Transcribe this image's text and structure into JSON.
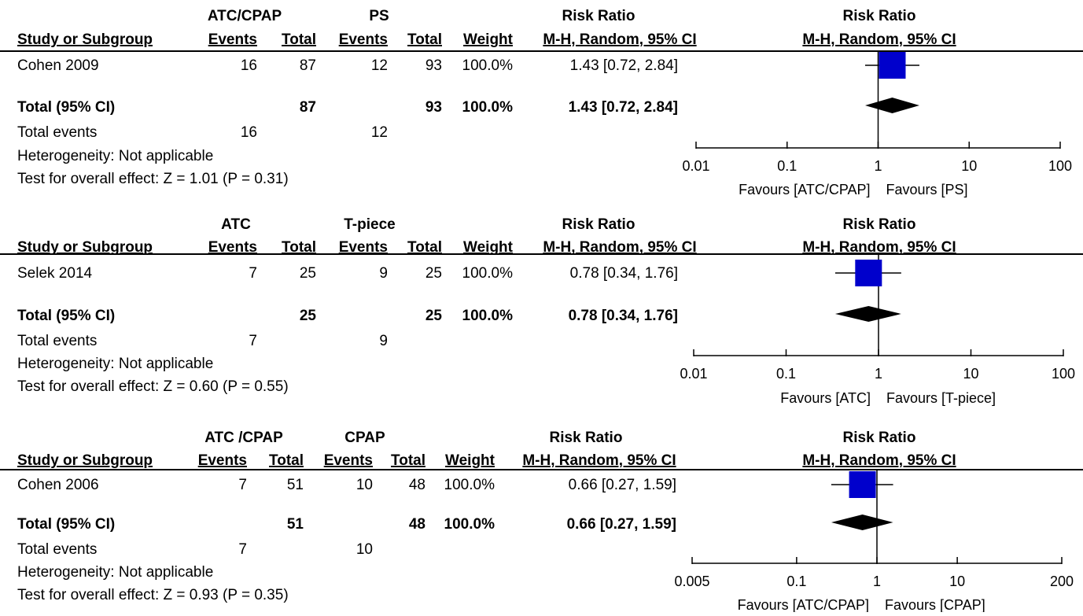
{
  "chart_data": [
    {
      "type": "forest",
      "groups": [
        "ATC/CPAP",
        "PS"
      ],
      "columns": [
        "Study or Subgroup",
        "Events",
        "Total",
        "Events",
        "Total",
        "Weight"
      ],
      "effect_header": "Risk Ratio",
      "effect_subheader": "M-H, Random, 95% CI",
      "studies": [
        {
          "name": "Cohen 2009",
          "e1": "16",
          "t1": "87",
          "e2": "12",
          "t2": "93",
          "weight": "100.0%",
          "ci_text": "1.43 [0.72, 2.84]",
          "rr": 1.43,
          "lo": 0.72,
          "hi": 2.84
        }
      ],
      "total": {
        "label": "Total (95% CI)",
        "t1": "87",
        "t2": "93",
        "weight": "100.0%",
        "ci_text": "1.43 [0.72, 2.84]",
        "rr": 1.43,
        "lo": 0.72,
        "hi": 2.84
      },
      "total_events": {
        "label": "Total events",
        "e1": "16",
        "e2": "12"
      },
      "heterogeneity": "Heterogeneity: Not applicable",
      "overall_effect": "Test for overall effect: Z = 1.01 (P = 0.31)",
      "x_scale": "log",
      "xlim": [
        0.01,
        100
      ],
      "ticks": [
        {
          "v": 0.01,
          "label": "0.01"
        },
        {
          "v": 0.1,
          "label": "0.1"
        },
        {
          "v": 1,
          "label": "1"
        },
        {
          "v": 10,
          "label": "10"
        },
        {
          "v": 100,
          "label": "100"
        }
      ],
      "favours_left": "Favours [ATC/CPAP]",
      "favours_right": "Favours [PS]"
    },
    {
      "type": "forest",
      "groups": [
        "ATC",
        "T-piece"
      ],
      "columns": [
        "Study or Subgroup",
        "Events",
        "Total",
        "Events",
        "Total",
        "Weight"
      ],
      "effect_header": "Risk Ratio",
      "effect_subheader": "M-H, Random, 95% CI",
      "studies": [
        {
          "name": "Selek 2014",
          "e1": "7",
          "t1": "25",
          "e2": "9",
          "t2": "25",
          "weight": "100.0%",
          "ci_text": "0.78 [0.34, 1.76]",
          "rr": 0.78,
          "lo": 0.34,
          "hi": 1.76
        }
      ],
      "total": {
        "label": "Total (95% CI)",
        "t1": "25",
        "t2": "25",
        "weight": "100.0%",
        "ci_text": "0.78 [0.34, 1.76]",
        "rr": 0.78,
        "lo": 0.34,
        "hi": 1.76
      },
      "total_events": {
        "label": "Total events",
        "e1": "7",
        "e2": "9"
      },
      "heterogeneity": "Heterogeneity: Not applicable",
      "overall_effect": "Test for overall effect: Z = 0.60 (P = 0.55)",
      "x_scale": "log",
      "xlim": [
        0.01,
        100
      ],
      "ticks": [
        {
          "v": 0.01,
          "label": "0.01"
        },
        {
          "v": 0.1,
          "label": "0.1"
        },
        {
          "v": 1,
          "label": "1"
        },
        {
          "v": 10,
          "label": "10"
        },
        {
          "v": 100,
          "label": "100"
        }
      ],
      "favours_left": "Favours [ATC]",
      "favours_right": "Favours [T-piece]"
    },
    {
      "type": "forest",
      "groups": [
        "ATC /CPAP",
        "CPAP"
      ],
      "columns": [
        "Study or Subgroup",
        "Events",
        "Total",
        "Events",
        "Total",
        "Weight"
      ],
      "effect_header": "Risk Ratio",
      "effect_subheader": "M-H, Random, 95% CI",
      "studies": [
        {
          "name": "Cohen 2006",
          "e1": "7",
          "t1": "51",
          "e2": "10",
          "t2": "48",
          "weight": "100.0%",
          "ci_text": "0.66 [0.27, 1.59]",
          "rr": 0.66,
          "lo": 0.27,
          "hi": 1.59
        }
      ],
      "total": {
        "label": "Total (95% CI)",
        "t1": "51",
        "t2": "48",
        "weight": "100.0%",
        "ci_text": "0.66 [0.27, 1.59]",
        "rr": 0.66,
        "lo": 0.27,
        "hi": 1.59
      },
      "total_events": {
        "label": "Total events",
        "e1": "7",
        "e2": "10"
      },
      "heterogeneity": "Heterogeneity: Not applicable",
      "overall_effect": "Test for overall effect: Z = 0.93 (P = 0.35)",
      "x_scale": "log",
      "xlim": [
        0.005,
        200
      ],
      "ticks": [
        {
          "v": 0.005,
          "label": "0.005"
        },
        {
          "v": 0.1,
          "label": "0.1"
        },
        {
          "v": 1,
          "label": "1"
        },
        {
          "v": 10,
          "label": "10"
        },
        {
          "v": 200,
          "label": "200"
        }
      ],
      "favours_left": "Favours [ATC/CPAP]",
      "favours_right": "Favours [CPAP]"
    }
  ],
  "colors": {
    "study_box": "#0000cc",
    "diamond": "#000000",
    "lines": "#000000"
  }
}
